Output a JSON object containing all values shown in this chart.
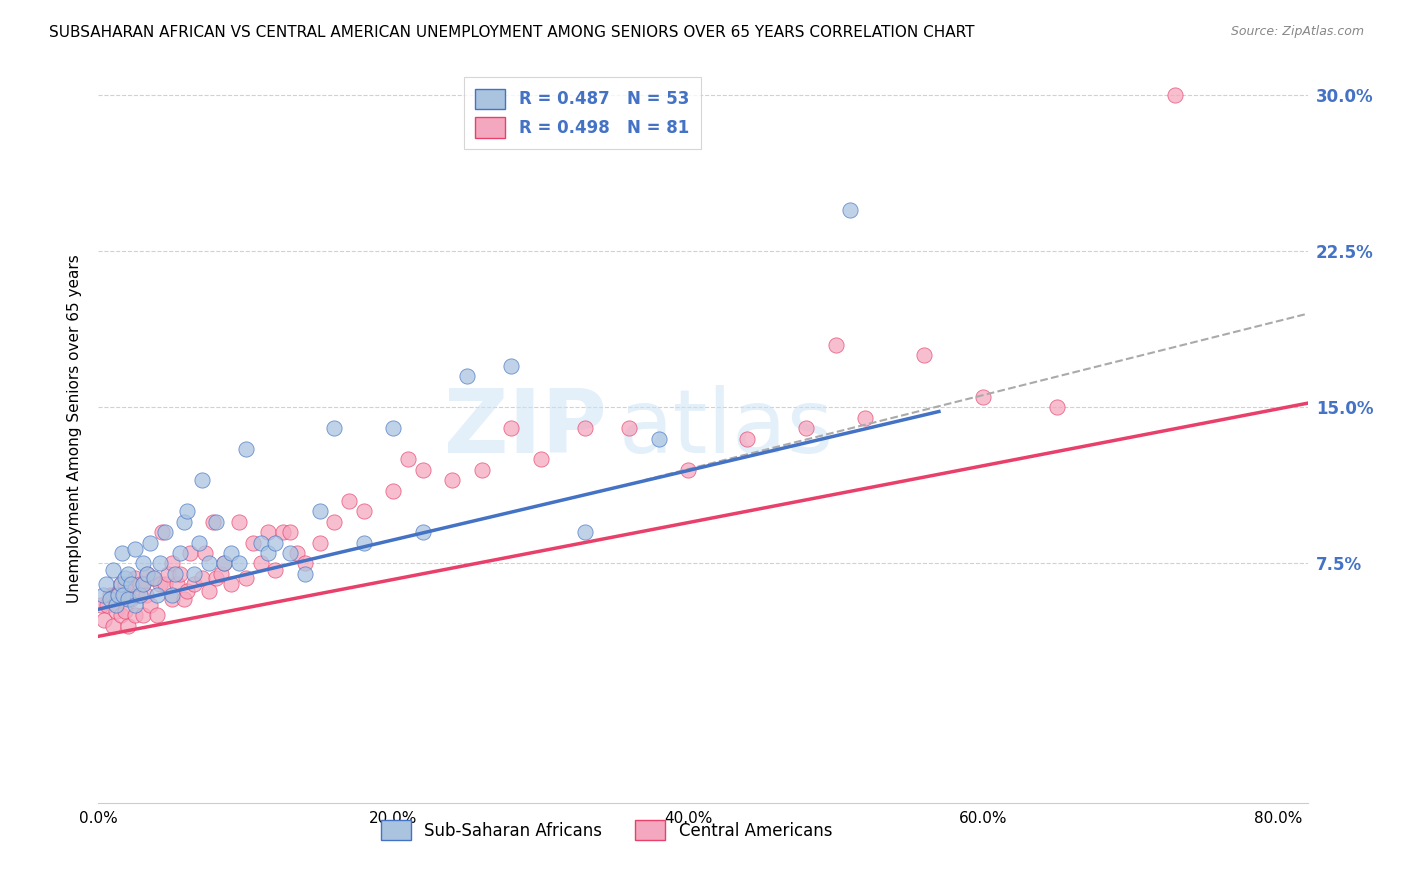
{
  "title": "SUBSAHARAN AFRICAN VS CENTRAL AMERICAN UNEMPLOYMENT AMONG SENIORS OVER 65 YEARS CORRELATION CHART",
  "source": "Source: ZipAtlas.com",
  "ylabel": "Unemployment Among Seniors over 65 years",
  "xlabel_ticks": [
    "0.0%",
    "20.0%",
    "40.0%",
    "60.0%",
    "80.0%"
  ],
  "xlabel_vals": [
    0.0,
    0.2,
    0.4,
    0.6,
    0.8
  ],
  "ylabel_ticks": [
    "7.5%",
    "15.0%",
    "22.5%",
    "30.0%"
  ],
  "ylabel_vals": [
    0.075,
    0.15,
    0.225,
    0.3
  ],
  "xlim": [
    0.0,
    0.82
  ],
  "ylim": [
    -0.04,
    0.32
  ],
  "scatter_blue_color": "#aac4e0",
  "scatter_pink_color": "#f4a8c0",
  "line_blue_color": "#4472c4",
  "line_pink_color": "#e8406a",
  "line_dashed_color": "#aaaaaa",
  "watermark_zip": "ZIP",
  "watermark_atlas": "atlas",
  "blue_line_x": [
    0.0,
    0.57
  ],
  "blue_line_y": [
    0.053,
    0.148
  ],
  "pink_line_x": [
    0.0,
    0.82
  ],
  "pink_line_y": [
    0.04,
    0.152
  ],
  "dashed_line_x": [
    0.37,
    0.82
  ],
  "dashed_line_y": [
    0.115,
    0.195
  ],
  "blue_scatter_x": [
    0.003,
    0.005,
    0.008,
    0.01,
    0.012,
    0.013,
    0.015,
    0.016,
    0.017,
    0.018,
    0.02,
    0.02,
    0.022,
    0.025,
    0.025,
    0.028,
    0.03,
    0.03,
    0.033,
    0.035,
    0.038,
    0.04,
    0.042,
    0.045,
    0.05,
    0.052,
    0.055,
    0.058,
    0.06,
    0.065,
    0.068,
    0.07,
    0.075,
    0.08,
    0.085,
    0.09,
    0.095,
    0.1,
    0.11,
    0.115,
    0.12,
    0.13,
    0.14,
    0.15,
    0.16,
    0.18,
    0.2,
    0.22,
    0.25,
    0.28,
    0.33,
    0.38,
    0.51
  ],
  "blue_scatter_y": [
    0.06,
    0.065,
    0.058,
    0.072,
    0.055,
    0.06,
    0.065,
    0.08,
    0.06,
    0.068,
    0.058,
    0.07,
    0.065,
    0.055,
    0.082,
    0.06,
    0.065,
    0.075,
    0.07,
    0.085,
    0.068,
    0.06,
    0.075,
    0.09,
    0.06,
    0.07,
    0.08,
    0.095,
    0.1,
    0.07,
    0.085,
    0.115,
    0.075,
    0.095,
    0.075,
    0.08,
    0.075,
    0.13,
    0.085,
    0.08,
    0.085,
    0.08,
    0.07,
    0.1,
    0.14,
    0.085,
    0.14,
    0.09,
    0.165,
    0.17,
    0.09,
    0.135,
    0.245
  ],
  "pink_scatter_x": [
    0.002,
    0.004,
    0.006,
    0.008,
    0.01,
    0.01,
    0.012,
    0.013,
    0.015,
    0.015,
    0.016,
    0.018,
    0.018,
    0.02,
    0.02,
    0.022,
    0.023,
    0.025,
    0.025,
    0.026,
    0.028,
    0.03,
    0.03,
    0.032,
    0.033,
    0.035,
    0.037,
    0.04,
    0.042,
    0.043,
    0.045,
    0.047,
    0.05,
    0.05,
    0.053,
    0.055,
    0.058,
    0.06,
    0.062,
    0.065,
    0.07,
    0.072,
    0.075,
    0.078,
    0.08,
    0.083,
    0.085,
    0.09,
    0.095,
    0.1,
    0.105,
    0.11,
    0.115,
    0.12,
    0.125,
    0.13,
    0.135,
    0.14,
    0.15,
    0.16,
    0.17,
    0.18,
    0.2,
    0.21,
    0.22,
    0.24,
    0.26,
    0.28,
    0.3,
    0.33,
    0.36,
    0.4,
    0.44,
    0.48,
    0.5,
    0.52,
    0.56,
    0.6,
    0.65,
    0.73
  ],
  "pink_scatter_y": [
    0.055,
    0.048,
    0.055,
    0.06,
    0.045,
    0.06,
    0.052,
    0.06,
    0.05,
    0.065,
    0.058,
    0.052,
    0.065,
    0.045,
    0.06,
    0.058,
    0.065,
    0.05,
    0.068,
    0.06,
    0.065,
    0.05,
    0.065,
    0.06,
    0.07,
    0.055,
    0.068,
    0.05,
    0.065,
    0.09,
    0.065,
    0.07,
    0.058,
    0.075,
    0.065,
    0.07,
    0.058,
    0.062,
    0.08,
    0.065,
    0.068,
    0.08,
    0.062,
    0.095,
    0.068,
    0.07,
    0.075,
    0.065,
    0.095,
    0.068,
    0.085,
    0.075,
    0.09,
    0.072,
    0.09,
    0.09,
    0.08,
    0.075,
    0.085,
    0.095,
    0.105,
    0.1,
    0.11,
    0.125,
    0.12,
    0.115,
    0.12,
    0.14,
    0.125,
    0.14,
    0.14,
    0.12,
    0.135,
    0.14,
    0.18,
    0.145,
    0.175,
    0.155,
    0.15,
    0.3
  ]
}
